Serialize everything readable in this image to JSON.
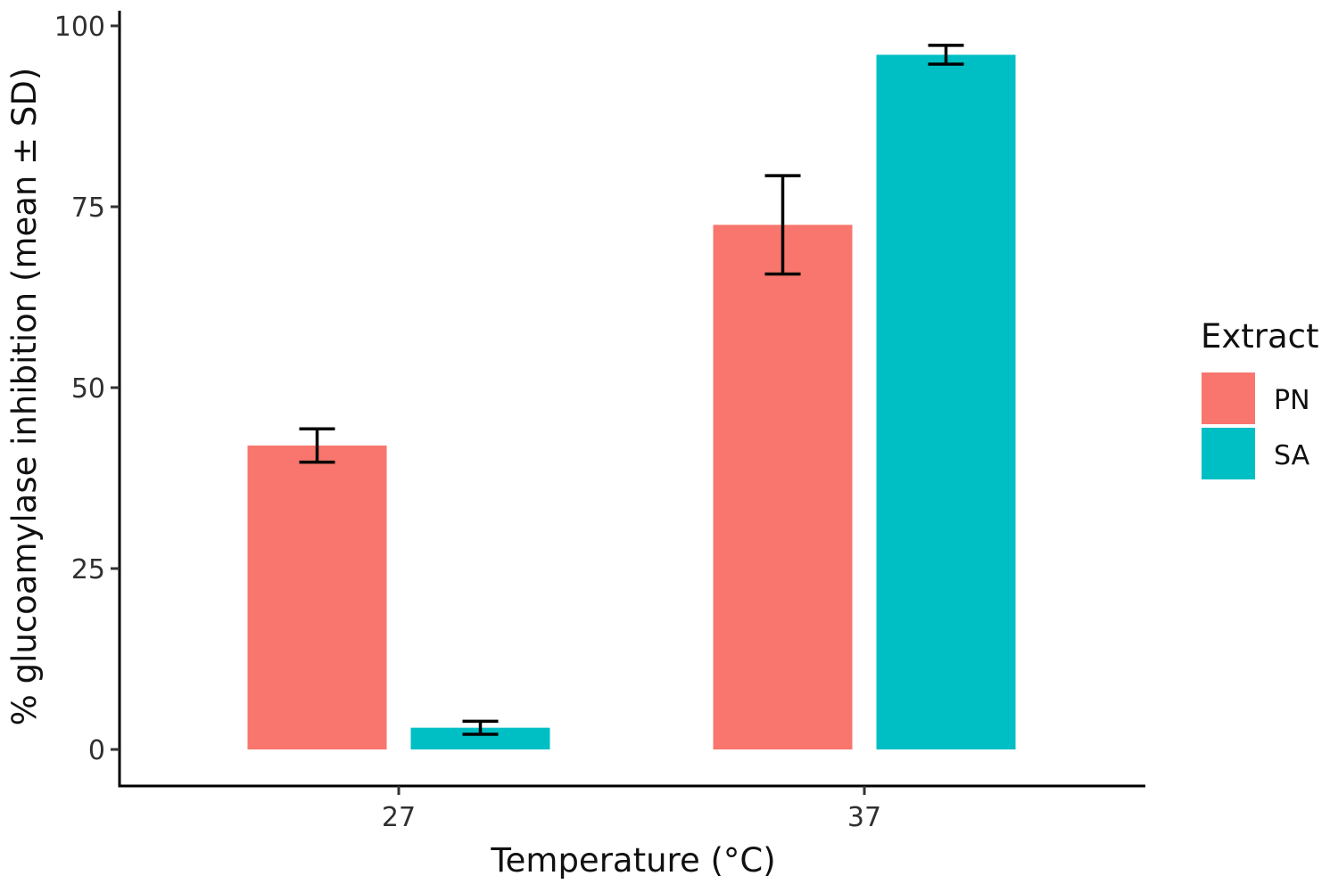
{
  "chart_data": {
    "type": "bar",
    "title": "",
    "xlabel": "Temperature (°C)",
    "ylabel": "% glucoamylase inhibition (mean ± SD)",
    "categories": [
      "27",
      "37"
    ],
    "ylim": [
      0,
      100
    ],
    "yticks": [
      "0",
      "25",
      "50",
      "75",
      "100"
    ],
    "grid": false,
    "legend": {
      "title": "Extract",
      "placement": "right"
    },
    "series": [
      {
        "name": "PN",
        "color": "#F8766D",
        "values": [
          42,
          72.5
        ],
        "errors": [
          2.3,
          6.8
        ]
      },
      {
        "name": "SA",
        "color": "#00BFC4",
        "values": [
          3,
          96
        ],
        "errors": [
          0.9,
          1.3
        ]
      }
    ]
  }
}
